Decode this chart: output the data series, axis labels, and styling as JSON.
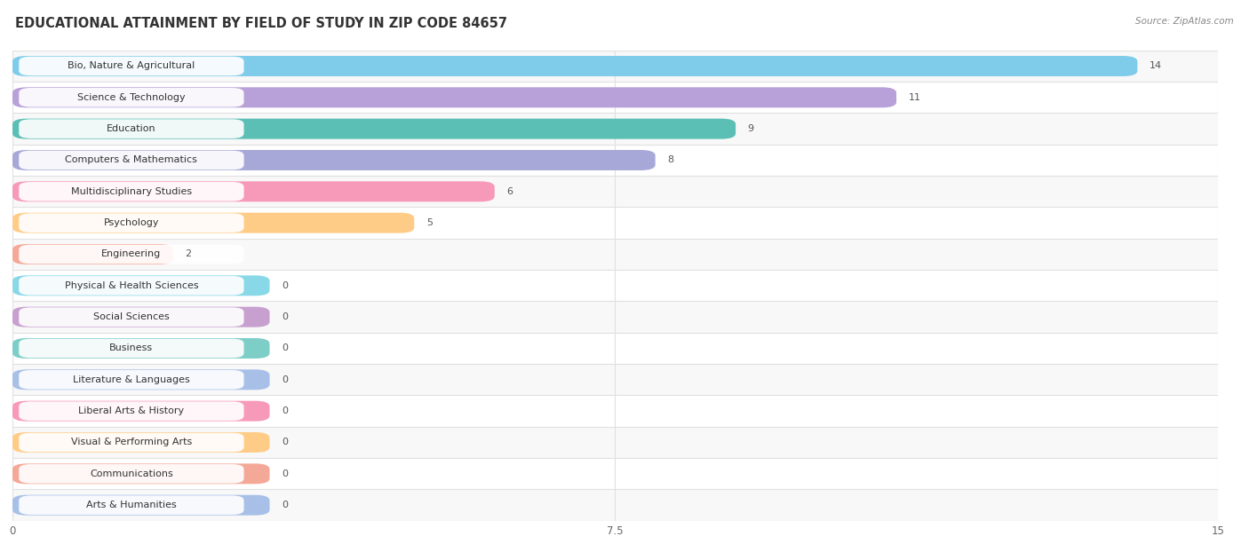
{
  "title": "EDUCATIONAL ATTAINMENT BY FIELD OF STUDY IN ZIP CODE 84657",
  "source": "Source: ZipAtlas.com",
  "categories": [
    "Bio, Nature & Agricultural",
    "Science & Technology",
    "Education",
    "Computers & Mathematics",
    "Multidisciplinary Studies",
    "Psychology",
    "Engineering",
    "Physical & Health Sciences",
    "Social Sciences",
    "Business",
    "Literature & Languages",
    "Liberal Arts & History",
    "Visual & Performing Arts",
    "Communications",
    "Arts & Humanities"
  ],
  "values": [
    14,
    11,
    9,
    8,
    6,
    5,
    2,
    0,
    0,
    0,
    0,
    0,
    0,
    0,
    0
  ],
  "bar_colors": [
    "#7ECCEA",
    "#B8A0D8",
    "#5BBFB5",
    "#A8A8D8",
    "#F799B8",
    "#FFCC88",
    "#F4A898",
    "#88D8E8",
    "#C8A0D0",
    "#7ECEC8",
    "#A8C0E8",
    "#F799B8",
    "#FFCC88",
    "#F4A898",
    "#A8C0E8"
  ],
  "xlim": [
    0,
    15
  ],
  "xticks": [
    0,
    7.5,
    15
  ],
  "background_color": "#ffffff",
  "row_bg_odd": "#f8f8f8",
  "row_bg_even": "#ffffff",
  "separator_color": "#e0e0e0",
  "bar_height": 0.65,
  "zero_bar_width": 3.2,
  "title_fontsize": 10.5,
  "label_fontsize": 8,
  "value_fontsize": 8
}
